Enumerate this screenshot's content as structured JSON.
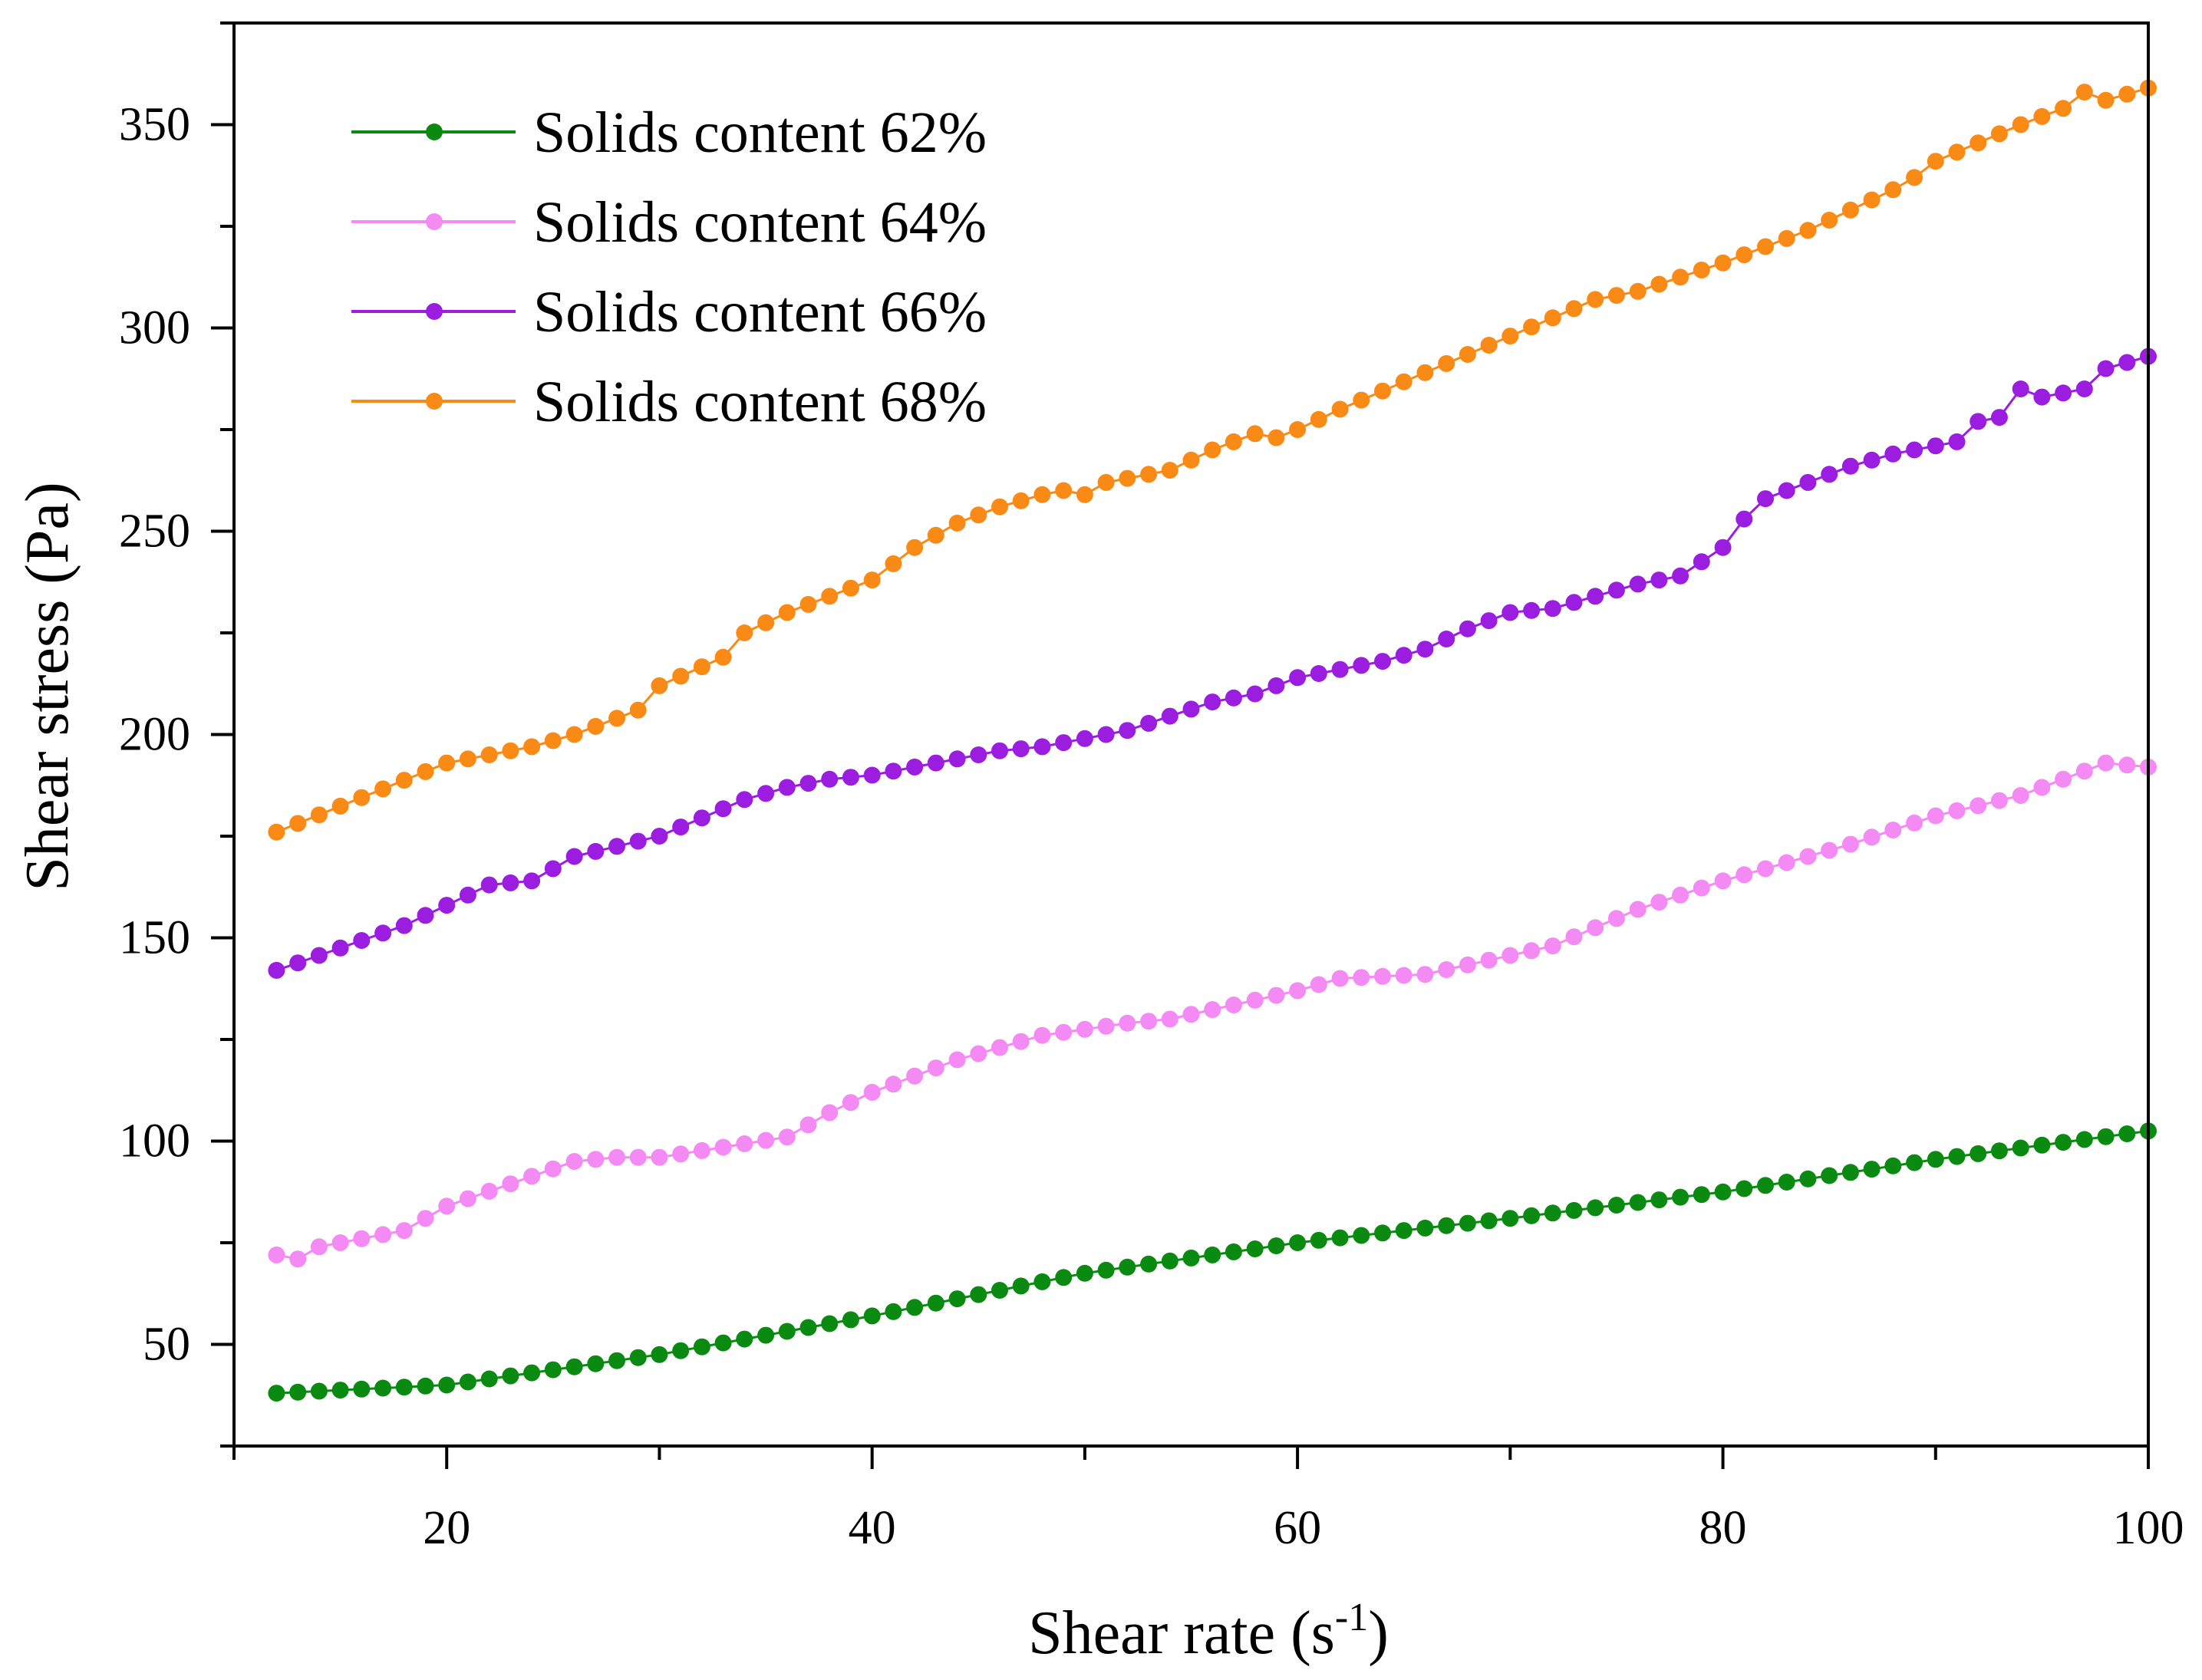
{
  "chart_data": {
    "type": "line",
    "xlabel": "Shear rate (s",
    "xlabel_superscript": "-1",
    "xlabel_suffix": ")",
    "ylabel": "Shear stress (Pa)",
    "xlim": [
      10,
      100
    ],
    "ylim": [
      25,
      375
    ],
    "x_ticks": [
      20,
      40,
      60,
      80,
      100
    ],
    "y_ticks": [
      50,
      100,
      150,
      200,
      250,
      300,
      350
    ],
    "grid": false,
    "legend_position": "top-left",
    "series": [
      {
        "name": "Solids content 62%",
        "color": "#0b8a12",
        "anchors": [
          [
            12,
            38
          ],
          [
            20,
            40
          ],
          [
            30,
            47.5
          ],
          [
            40,
            57
          ],
          [
            50,
            67.5
          ],
          [
            60,
            75
          ],
          [
            70,
            81
          ],
          [
            80,
            87.5
          ],
          [
            90,
            95.5
          ],
          [
            100,
            102.5
          ]
        ]
      },
      {
        "name": "Solids content 64%",
        "color": "#f48af4",
        "anchors": [
          [
            12,
            72
          ],
          [
            13,
            71
          ],
          [
            14,
            74
          ],
          [
            18,
            78
          ],
          [
            20,
            84
          ],
          [
            26,
            95
          ],
          [
            28,
            96
          ],
          [
            30,
            96
          ],
          [
            36,
            101
          ],
          [
            38,
            107
          ],
          [
            40,
            112
          ],
          [
            44,
            120
          ],
          [
            48,
            126
          ],
          [
            52,
            129
          ],
          [
            54,
            130
          ],
          [
            60,
            137
          ],
          [
            62,
            140
          ],
          [
            66,
            141
          ],
          [
            72,
            148
          ],
          [
            76,
            157
          ],
          [
            80,
            164
          ],
          [
            86,
            173
          ],
          [
            90,
            180
          ],
          [
            94,
            185
          ],
          [
            98,
            193
          ],
          [
            100,
            192
          ]
        ]
      },
      {
        "name": "Solids content 66%",
        "color": "#9a1de0",
        "anchors": [
          [
            12,
            142
          ],
          [
            18,
            153
          ],
          [
            22,
            163
          ],
          [
            24,
            164
          ],
          [
            26,
            170
          ],
          [
            30,
            175
          ],
          [
            34,
            184
          ],
          [
            36,
            187
          ],
          [
            38,
            189
          ],
          [
            40,
            190
          ],
          [
            44,
            194
          ],
          [
            46,
            196
          ],
          [
            48,
            197
          ],
          [
            52,
            201
          ],
          [
            56,
            208
          ],
          [
            58,
            210
          ],
          [
            60,
            214
          ],
          [
            62,
            216
          ],
          [
            64,
            218
          ],
          [
            66,
            221
          ],
          [
            68,
            226
          ],
          [
            70,
            230
          ],
          [
            72,
            231
          ],
          [
            76,
            237
          ],
          [
            78,
            239
          ],
          [
            80,
            246
          ],
          [
            81,
            253
          ],
          [
            82,
            258
          ],
          [
            86,
            266
          ],
          [
            88,
            269
          ],
          [
            90,
            271
          ],
          [
            91,
            272
          ],
          [
            92,
            277
          ],
          [
            93,
            278
          ],
          [
            94,
            285
          ],
          [
            95,
            283
          ],
          [
            97,
            285
          ],
          [
            98,
            290
          ],
          [
            100,
            293
          ]
        ]
      },
      {
        "name": "Solids content 68%",
        "color": "#f98a15",
        "anchors": [
          [
            12,
            176
          ],
          [
            20,
            193
          ],
          [
            22,
            195
          ],
          [
            24,
            197
          ],
          [
            26,
            200
          ],
          [
            29,
            206
          ],
          [
            30,
            212
          ],
          [
            33,
            219
          ],
          [
            34,
            225
          ],
          [
            36,
            230
          ],
          [
            40,
            238
          ],
          [
            42,
            246
          ],
          [
            44,
            252
          ],
          [
            46,
            256
          ],
          [
            48,
            259
          ],
          [
            49,
            260
          ],
          [
            50,
            259
          ],
          [
            51,
            262
          ],
          [
            54,
            265
          ],
          [
            56,
            270
          ],
          [
            58,
            274
          ],
          [
            59,
            273
          ],
          [
            60,
            275
          ],
          [
            62,
            280
          ],
          [
            66,
            289
          ],
          [
            70,
            298
          ],
          [
            74,
            307
          ],
          [
            75,
            308
          ],
          [
            76,
            309
          ],
          [
            80,
            316
          ],
          [
            84,
            324
          ],
          [
            88,
            334
          ],
          [
            89,
            337
          ],
          [
            90,
            341
          ],
          [
            94,
            350
          ],
          [
            96,
            354
          ],
          [
            97,
            358
          ],
          [
            98,
            356
          ],
          [
            100,
            359
          ]
        ]
      }
    ]
  }
}
